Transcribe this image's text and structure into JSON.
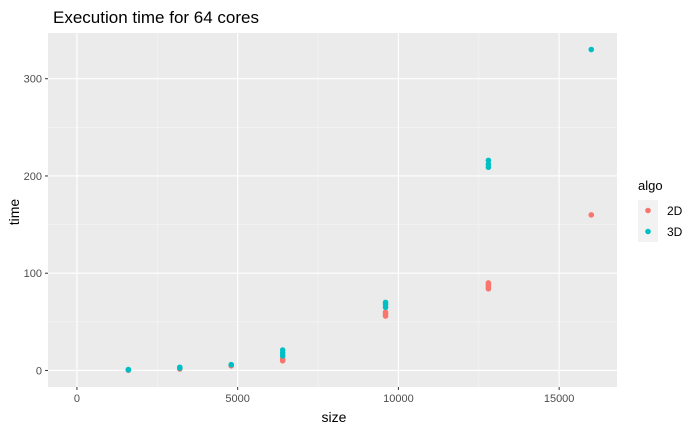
{
  "chart_data": {
    "type": "scatter",
    "title": "Execution time for 64 cores",
    "xlabel": "size",
    "ylabel": "time",
    "xlim": [
      -900,
      16800
    ],
    "ylim": [
      -17,
      347
    ],
    "x_ticks": [
      0,
      5000,
      10000,
      15000
    ],
    "x_tick_labels": [
      "0",
      "5000",
      "10000",
      "15000"
    ],
    "y_ticks": [
      0,
      100,
      200,
      300
    ],
    "y_tick_labels": [
      "0",
      "100",
      "200",
      "300"
    ],
    "grid": true,
    "legend": {
      "title": "algo",
      "position": "right"
    },
    "series": [
      {
        "name": "2D",
        "color": "#F8766D",
        "points": [
          [
            1600,
            0.3
          ],
          [
            1600,
            0.5
          ],
          [
            3200,
            1.5
          ],
          [
            3200,
            2.2
          ],
          [
            4800,
            4.8
          ],
          [
            6400,
            10
          ],
          [
            6400,
            12
          ],
          [
            9600,
            56
          ],
          [
            9600,
            58
          ],
          [
            9600,
            60
          ],
          [
            12800,
            84
          ],
          [
            12800,
            86
          ],
          [
            12800,
            88
          ],
          [
            12800,
            90
          ],
          [
            16000,
            160
          ]
        ]
      },
      {
        "name": "3D",
        "color": "#00BFC4",
        "points": [
          [
            1600,
            0.6
          ],
          [
            1600,
            1.0
          ],
          [
            3200,
            2.5
          ],
          [
            3200,
            3.3
          ],
          [
            4800,
            6
          ],
          [
            6400,
            15
          ],
          [
            6400,
            18
          ],
          [
            6400,
            21
          ],
          [
            9600,
            65
          ],
          [
            9600,
            68
          ],
          [
            9600,
            70
          ],
          [
            12800,
            209
          ],
          [
            12800,
            212
          ],
          [
            12800,
            216
          ],
          [
            16000,
            330
          ]
        ]
      }
    ]
  }
}
